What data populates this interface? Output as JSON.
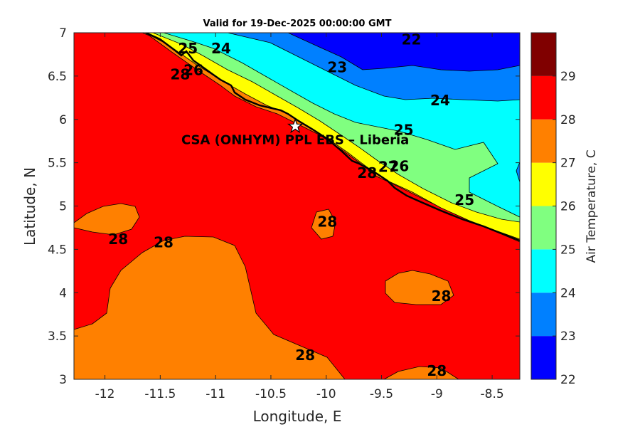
{
  "title": "Valid for 19-Dec-2025 00:00:00 GMT",
  "x_axis": {
    "label": "Longitude, E",
    "ticks": [
      "-12",
      "-11.5",
      "-11",
      "-10.5",
      "-10",
      "-9.5",
      "-9",
      "-8.5"
    ]
  },
  "y_axis": {
    "label": "Latitude, N",
    "ticks": [
      "3",
      "3.5",
      "4",
      "4.5",
      "5",
      "5.5",
      "6",
      "6.5",
      "7"
    ]
  },
  "colorbar": {
    "label": "Air Temperature, C",
    "ticks": [
      "22",
      "23",
      "24",
      "25",
      "26",
      "27",
      "28",
      "29"
    ],
    "colors": [
      "#0000ff",
      "#0080ff",
      "#00ffff",
      "#80ff80",
      "#ffff00",
      "#ff8000",
      "#ff0000",
      "#800000"
    ]
  },
  "site": {
    "name": "CSA (ONHYM) PPL EBS  – Liberia",
    "lon": -10.28,
    "lat": 5.92,
    "marker": "star-icon"
  },
  "contour_labels": [
    {
      "text": "22",
      "lon": -9.23,
      "lat": 6.92
    },
    {
      "text": "23",
      "lon": -9.9,
      "lat": 6.6
    },
    {
      "text": "24",
      "lon": -10.95,
      "lat": 6.82
    },
    {
      "text": "24",
      "lon": -8.97,
      "lat": 6.22
    },
    {
      "text": "25",
      "lon": -11.25,
      "lat": 6.82
    },
    {
      "text": "25",
      "lon": -9.3,
      "lat": 5.88
    },
    {
      "text": "25",
      "lon": -8.75,
      "lat": 5.07
    },
    {
      "text": "26",
      "lon": -11.2,
      "lat": 6.57
    },
    {
      "text": "26",
      "lon": -9.34,
      "lat": 5.46
    },
    {
      "text": "27",
      "lon": -9.44,
      "lat": 5.45
    },
    {
      "text": "28",
      "lon": -11.32,
      "lat": 6.52
    },
    {
      "text": "28",
      "lon": -9.63,
      "lat": 5.38
    },
    {
      "text": "28",
      "lon": -9.99,
      "lat": 4.82
    },
    {
      "text": "28",
      "lon": -11.88,
      "lat": 4.62
    },
    {
      "text": "28",
      "lon": -11.47,
      "lat": 4.58
    },
    {
      "text": "28",
      "lon": -8.96,
      "lat": 3.96
    },
    {
      "text": "28",
      "lon": -10.19,
      "lat": 3.28
    },
    {
      "text": "28",
      "lon": -9.0,
      "lat": 3.1
    }
  ]
}
